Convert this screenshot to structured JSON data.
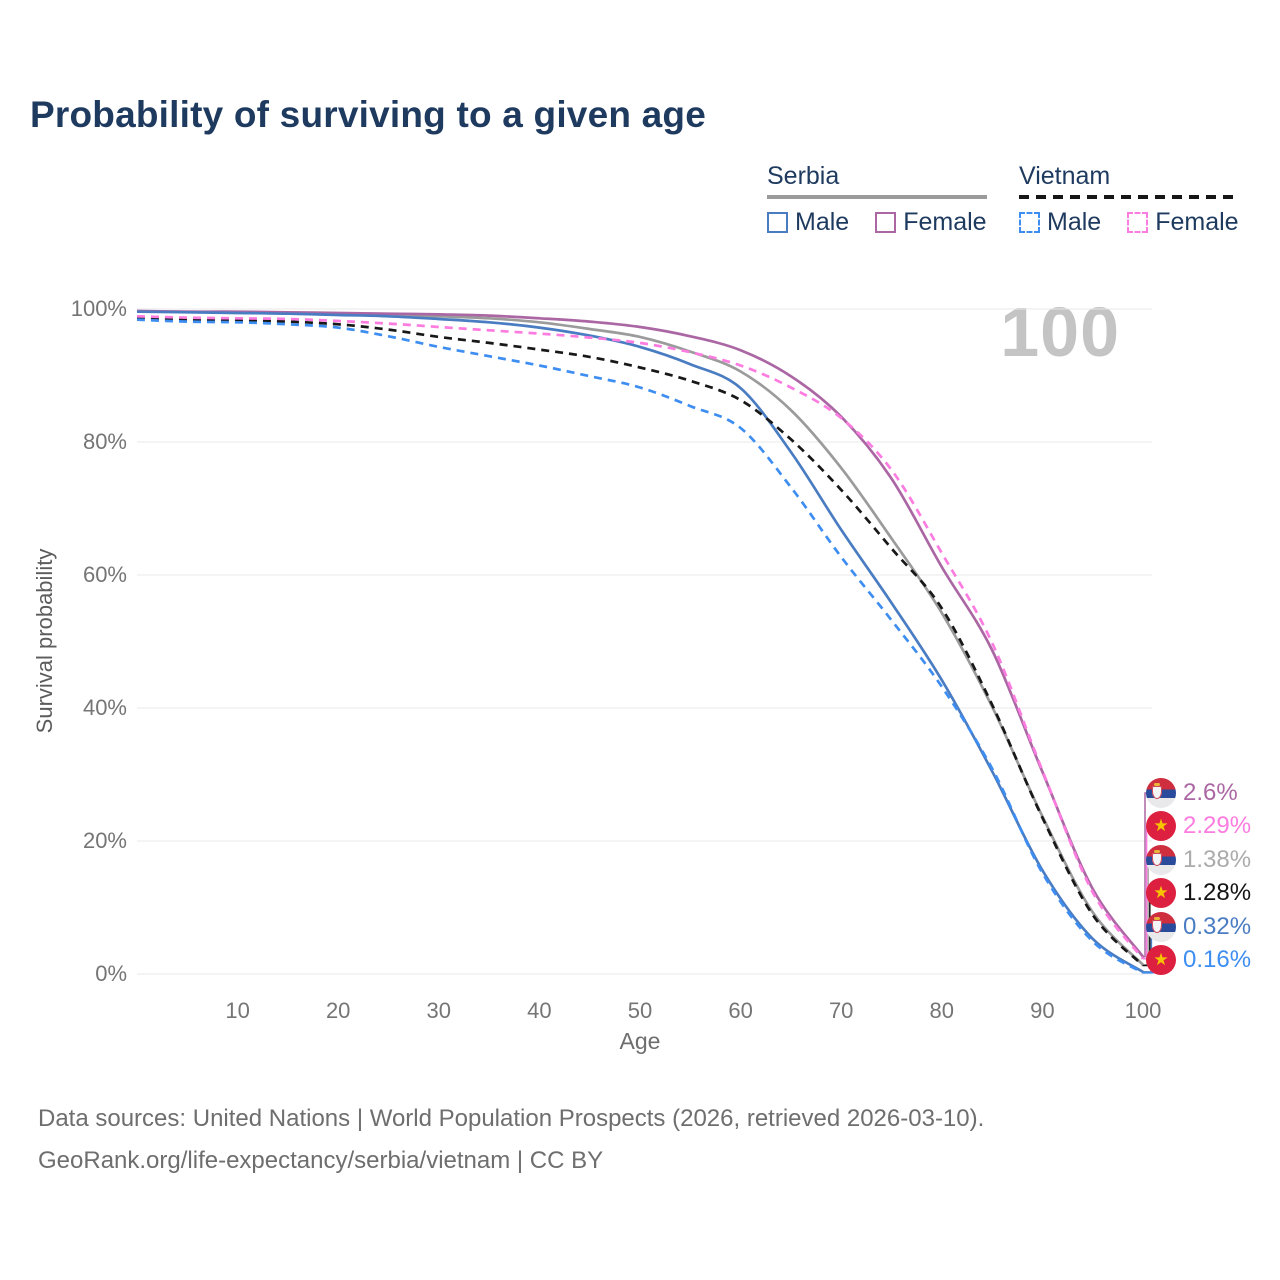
{
  "title": "Probability of surviving to a given age",
  "watermark": "100",
  "legend": {
    "serbia": {
      "country": "Serbia",
      "male": "Male",
      "female": "Female"
    },
    "vietnam": {
      "country": "Vietnam",
      "male": "Male",
      "female": "Female"
    }
  },
  "chart_data": {
    "type": "line",
    "title": "Probability of surviving to a given age",
    "xlabel": "Age",
    "ylabel": "Survival probability",
    "xlim": [
      0,
      100
    ],
    "ylim": [
      0,
      100
    ],
    "grid": "horizontal-only",
    "legend_position": "top-right",
    "x_ticks": [
      10,
      20,
      30,
      40,
      50,
      60,
      70,
      80,
      90,
      100
    ],
    "y_ticks": [
      0,
      20,
      40,
      60,
      80,
      100
    ],
    "y_tick_labels": [
      "0%",
      "20%",
      "40%",
      "60%",
      "80%",
      "100%"
    ],
    "x": [
      0,
      5,
      10,
      15,
      20,
      25,
      30,
      35,
      40,
      45,
      50,
      55,
      60,
      65,
      70,
      75,
      80,
      85,
      90,
      95,
      100
    ],
    "series": [
      {
        "id": "serbia-total",
        "name": "Serbia (both sexes)",
        "color": "#9b9b9b",
        "dashed": false,
        "values": [
          99.6,
          99.6,
          99.5,
          99.4,
          99.3,
          99.1,
          98.9,
          98.6,
          98.0,
          97.0,
          95.8,
          93.6,
          90.6,
          84.8,
          76.1,
          65.5,
          54.3,
          40.2,
          23.7,
          9.3,
          1.38
        ]
      },
      {
        "id": "serbia-female",
        "name": "Serbia Female",
        "color": "#ab67a4",
        "dashed": false,
        "values": [
          99.7,
          99.6,
          99.6,
          99.5,
          99.4,
          99.3,
          99.2,
          99.0,
          98.6,
          98.1,
          97.3,
          95.9,
          93.8,
          89.9,
          83.8,
          74.5,
          61.2,
          48.7,
          30.4,
          12.8,
          2.6
        ]
      },
      {
        "id": "serbia-male",
        "name": "Serbia Male",
        "color": "#4a7cc2",
        "dashed": false,
        "values": [
          99.6,
          99.5,
          99.4,
          99.3,
          99.1,
          98.9,
          98.5,
          98.0,
          97.2,
          96.0,
          94.3,
          91.7,
          88.1,
          78.5,
          66.8,
          55.8,
          44.2,
          30.5,
          15.6,
          5.3,
          0.32
        ]
      },
      {
        "id": "vietnam-total",
        "name": "Vietnam (both sexes)",
        "color": "#181818",
        "dashed": true,
        "values": [
          98.7,
          98.4,
          98.3,
          98.1,
          97.7,
          96.9,
          95.8,
          94.9,
          93.9,
          92.8,
          91.2,
          89.2,
          86.3,
          80.4,
          72.8,
          64.0,
          55.0,
          40.5,
          23.5,
          8.9,
          1.28
        ]
      },
      {
        "id": "vietnam-female",
        "name": "Vietnam Female",
        "color": "#fc7ce0",
        "dashed": true,
        "values": [
          98.9,
          98.7,
          98.6,
          98.5,
          98.2,
          97.8,
          97.3,
          96.8,
          96.3,
          95.7,
          94.9,
          93.5,
          91.5,
          88.2,
          83.6,
          75.8,
          63.3,
          49.8,
          30.6,
          12.3,
          2.29
        ]
      },
      {
        "id": "vietnam-male",
        "name": "Vietnam Male",
        "color": "#3e8ef2",
        "dashed": true,
        "values": [
          98.4,
          98.1,
          98.0,
          97.7,
          97.2,
          95.9,
          94.3,
          92.9,
          91.5,
          89.9,
          88.2,
          85.4,
          82.1,
          73.2,
          62.7,
          53.2,
          43.2,
          30.9,
          15.2,
          4.9,
          0.16
        ]
      }
    ]
  },
  "end_labels": [
    {
      "flag": "Serbia",
      "text": "2.6%",
      "value": 2.6,
      "color": "#ab67a4"
    },
    {
      "flag": "Vietnam",
      "text": "2.29%",
      "value": 2.29,
      "color": "#fc7ce0"
    },
    {
      "flag": "Serbia",
      "text": "1.38%",
      "value": 1.38,
      "color": "#ababab"
    },
    {
      "flag": "Vietnam",
      "text": "1.28%",
      "value": 1.28,
      "color": "#141414"
    },
    {
      "flag": "Serbia",
      "text": "0.32%",
      "value": 0.32,
      "color": "#4a7cc2"
    },
    {
      "flag": "Vietnam",
      "text": "0.16%",
      "value": 0.16,
      "color": "#3e8ef2"
    }
  ],
  "footer": {
    "line1": "Data sources: United Nations | World Population Prospects (2026, retrieved 2026-03-10).",
    "line2": "GeoRank.org/life-expectancy/serbia/vietnam | CC BY"
  }
}
